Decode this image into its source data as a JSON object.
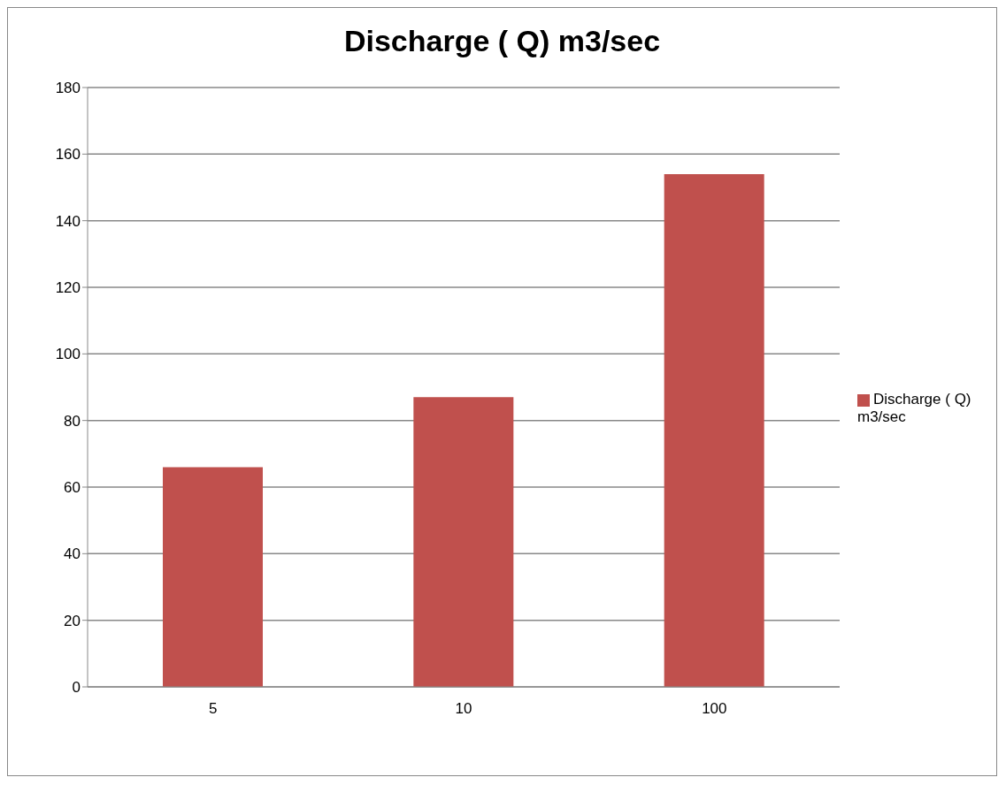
{
  "chart_data": {
    "type": "bar",
    "title": "Discharge ( Q) m3/sec",
    "categories": [
      "5",
      "10",
      "100"
    ],
    "series": [
      {
        "name": "Discharge ( Q) m3/sec",
        "color": "#c0504d",
        "values": [
          66,
          87,
          154
        ]
      }
    ],
    "ylim": [
      0,
      180
    ],
    "yticks": [
      0,
      20,
      40,
      60,
      80,
      100,
      120,
      140,
      160,
      180
    ],
    "grid": "y",
    "legend": "right"
  }
}
